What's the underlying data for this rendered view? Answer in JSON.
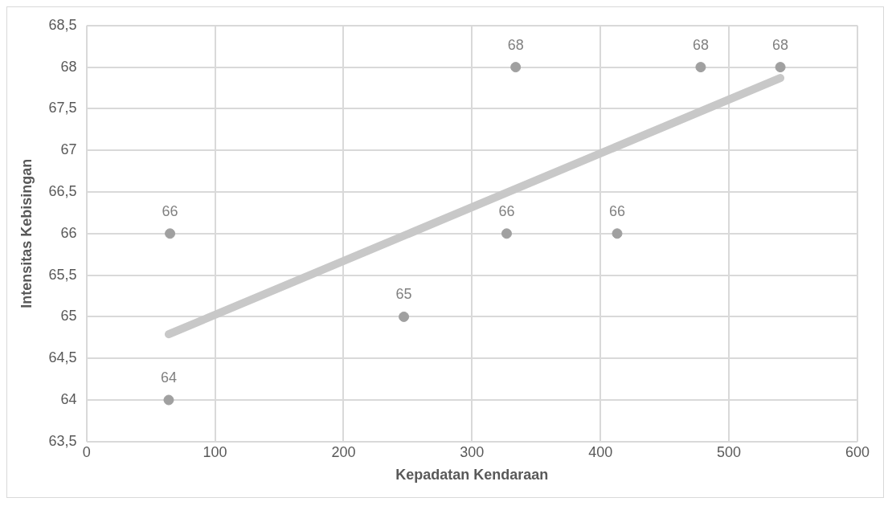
{
  "chart_data": {
    "type": "scatter",
    "xlabel": "Kepadatan Kendaraan",
    "ylabel": "Intensitas Kebisingan",
    "xlim": [
      0,
      600
    ],
    "xticks": [
      0,
      100,
      200,
      300,
      400,
      500,
      600
    ],
    "ylim": [
      63.5,
      68.5
    ],
    "yticks": [
      {
        "value": 63.5,
        "label": "63,5"
      },
      {
        "value": 64,
        "label": "64"
      },
      {
        "value": 64.5,
        "label": "64,5"
      },
      {
        "value": 65,
        "label": "65"
      },
      {
        "value": 65.5,
        "label": "65,5"
      },
      {
        "value": 66,
        "label": "66"
      },
      {
        "value": 66.5,
        "label": "66,5"
      },
      {
        "value": 67,
        "label": "67"
      },
      {
        "value": 67.5,
        "label": "67,5"
      },
      {
        "value": 68,
        "label": "68"
      },
      {
        "value": 68.5,
        "label": "68,5"
      }
    ],
    "grid": true,
    "legend": false,
    "series": [
      {
        "marker": "circle",
        "color": "#a0a0a0",
        "x": [
          64,
          65,
          247,
          327,
          334,
          413,
          478,
          540
        ],
        "values": [
          64,
          66,
          65,
          66,
          68,
          66,
          68,
          68
        ],
        "value_labels": [
          "64",
          "66",
          "65",
          "66",
          "68",
          "66",
          "68",
          "68"
        ]
      },
      {
        "type": "line",
        "marker": "none",
        "color": "#c8c8c8",
        "x": [
          64,
          540
        ],
        "values": [
          64.79,
          67.87
        ]
      }
    ]
  }
}
